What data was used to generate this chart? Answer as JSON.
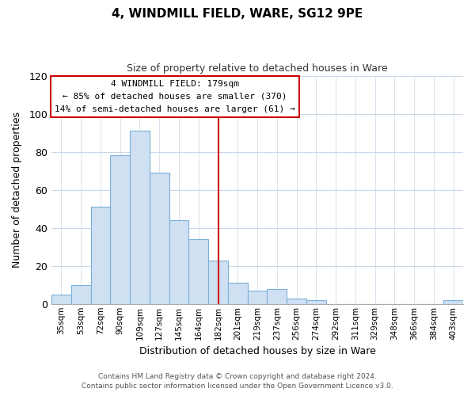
{
  "title": "4, WINDMILL FIELD, WARE, SG12 9PE",
  "subtitle": "Size of property relative to detached houses in Ware",
  "xlabel": "Distribution of detached houses by size in Ware",
  "ylabel": "Number of detached properties",
  "bar_labels": [
    "35sqm",
    "53sqm",
    "72sqm",
    "90sqm",
    "109sqm",
    "127sqm",
    "145sqm",
    "164sqm",
    "182sqm",
    "201sqm",
    "219sqm",
    "237sqm",
    "256sqm",
    "274sqm",
    "292sqm",
    "311sqm",
    "329sqm",
    "348sqm",
    "366sqm",
    "384sqm",
    "403sqm"
  ],
  "bar_values": [
    5,
    10,
    51,
    78,
    91,
    69,
    44,
    34,
    23,
    11,
    7,
    8,
    3,
    2,
    0,
    0,
    0,
    0,
    0,
    0,
    2
  ],
  "bar_color": "#cfe0f3",
  "bar_edge_color": "#7ab0d8",
  "vline_x_index": 8,
  "vline_color": "#cc0000",
  "ylim": [
    0,
    120
  ],
  "yticks": [
    0,
    20,
    40,
    60,
    80,
    100,
    120
  ],
  "annotation_title": "4 WINDMILL FIELD: 179sqm",
  "annotation_line1": "← 85% of detached houses are smaller (370)",
  "annotation_line2": "14% of semi-detached houses are larger (61) →",
  "annotation_box_color": "#ffffff",
  "annotation_box_edge": "#cc0000",
  "footer1": "Contains HM Land Registry data © Crown copyright and database right 2024.",
  "footer2": "Contains public sector information licensed under the Open Government Licence v3.0.",
  "bg_color": "#ffffff",
  "grid_color": "#c8d8e8"
}
